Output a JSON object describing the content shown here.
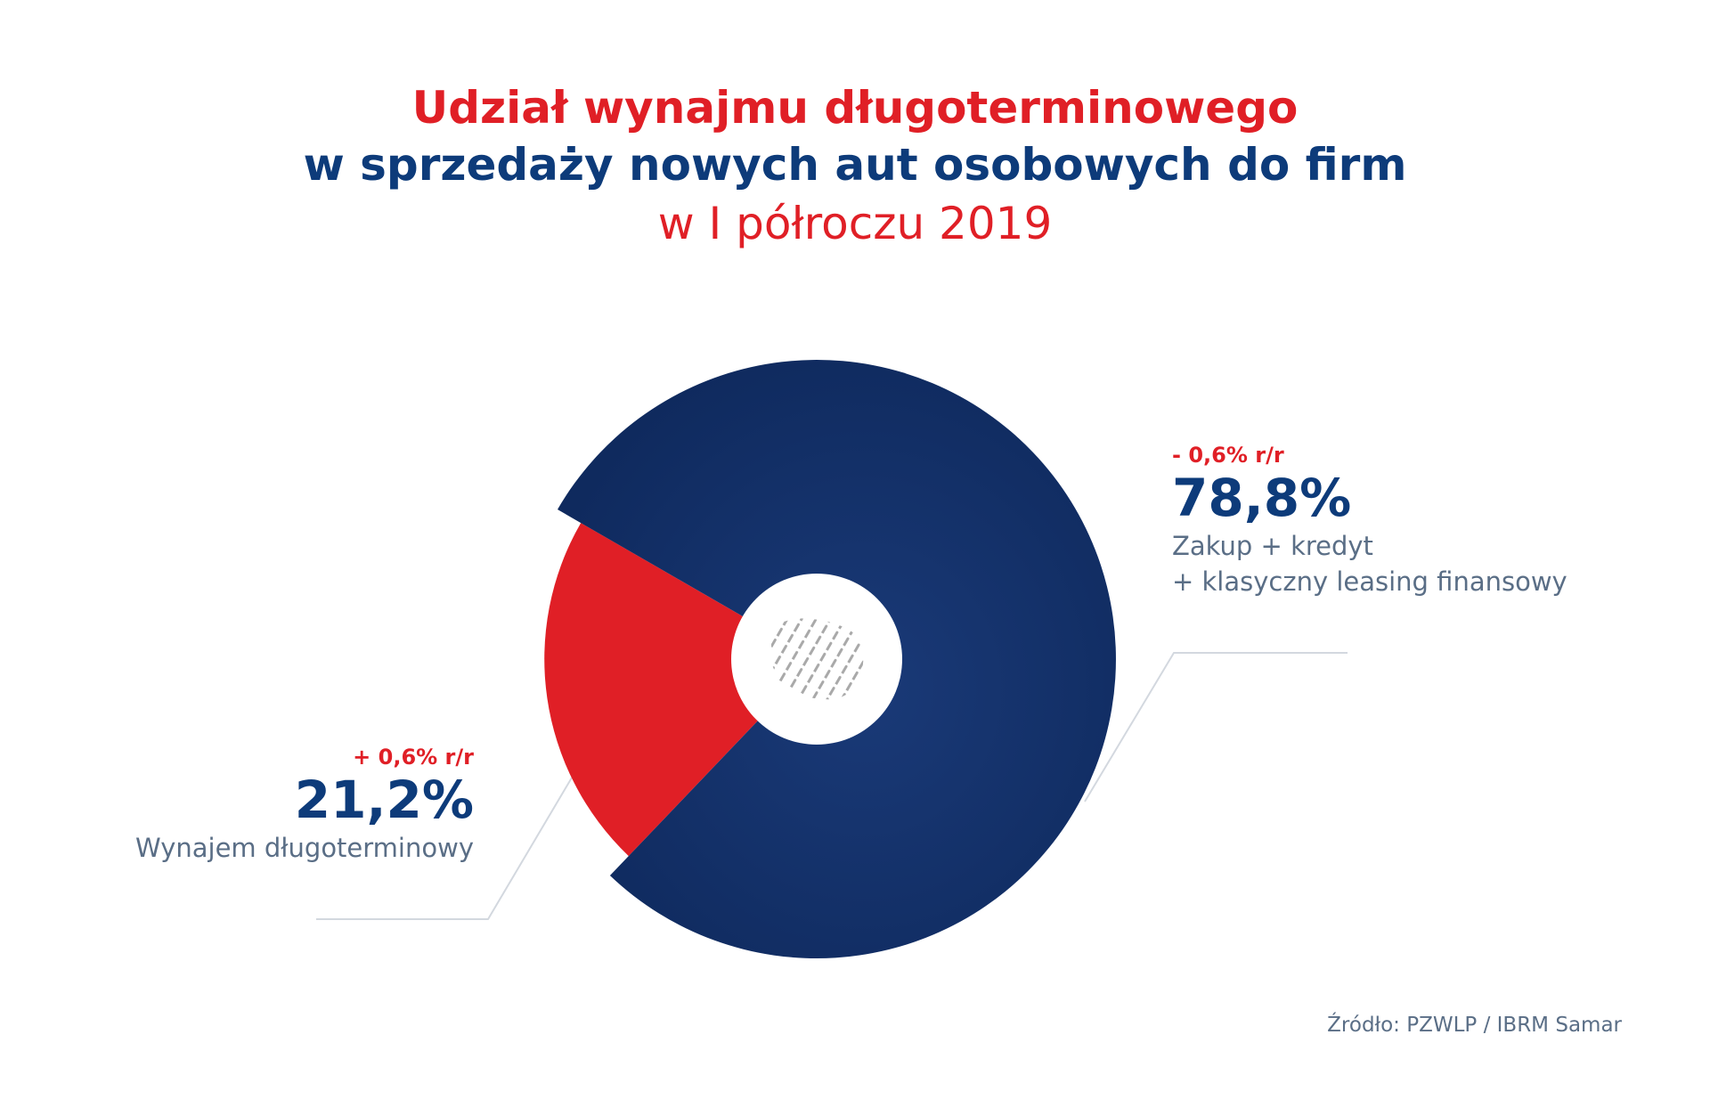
{
  "title": {
    "line1": "Udział wynajmu długoterminowego",
    "line2": "w sprzedaży nowych aut osobowych do firm",
    "line3": "w I półroczu 2019"
  },
  "source": "Źródło: PZWLP / IBRM Samar",
  "colors": {
    "accent_red": "#e01f26",
    "dark_blue": "#0d3b7a",
    "pie_blue": "#122f66",
    "text_grey": "#5a6e86",
    "leader_line": "#d3d8df"
  },
  "chart_data": {
    "type": "pie",
    "slices": [
      {
        "label": "Wynajem długoterminowy",
        "value": 21.2,
        "value_label": "21,2%",
        "change": "+ 0,6% r/r",
        "color": "#e01f26"
      },
      {
        "label": "Zakup + kredyt + klasyczny leasing finansowy",
        "label_lines": [
          "Zakup + kredyt",
          "+ klasyczny leasing finansowy"
        ],
        "value": 78.8,
        "value_label": "78,8%",
        "change": "- 0,6% r/r",
        "color": "#122f66"
      }
    ]
  }
}
